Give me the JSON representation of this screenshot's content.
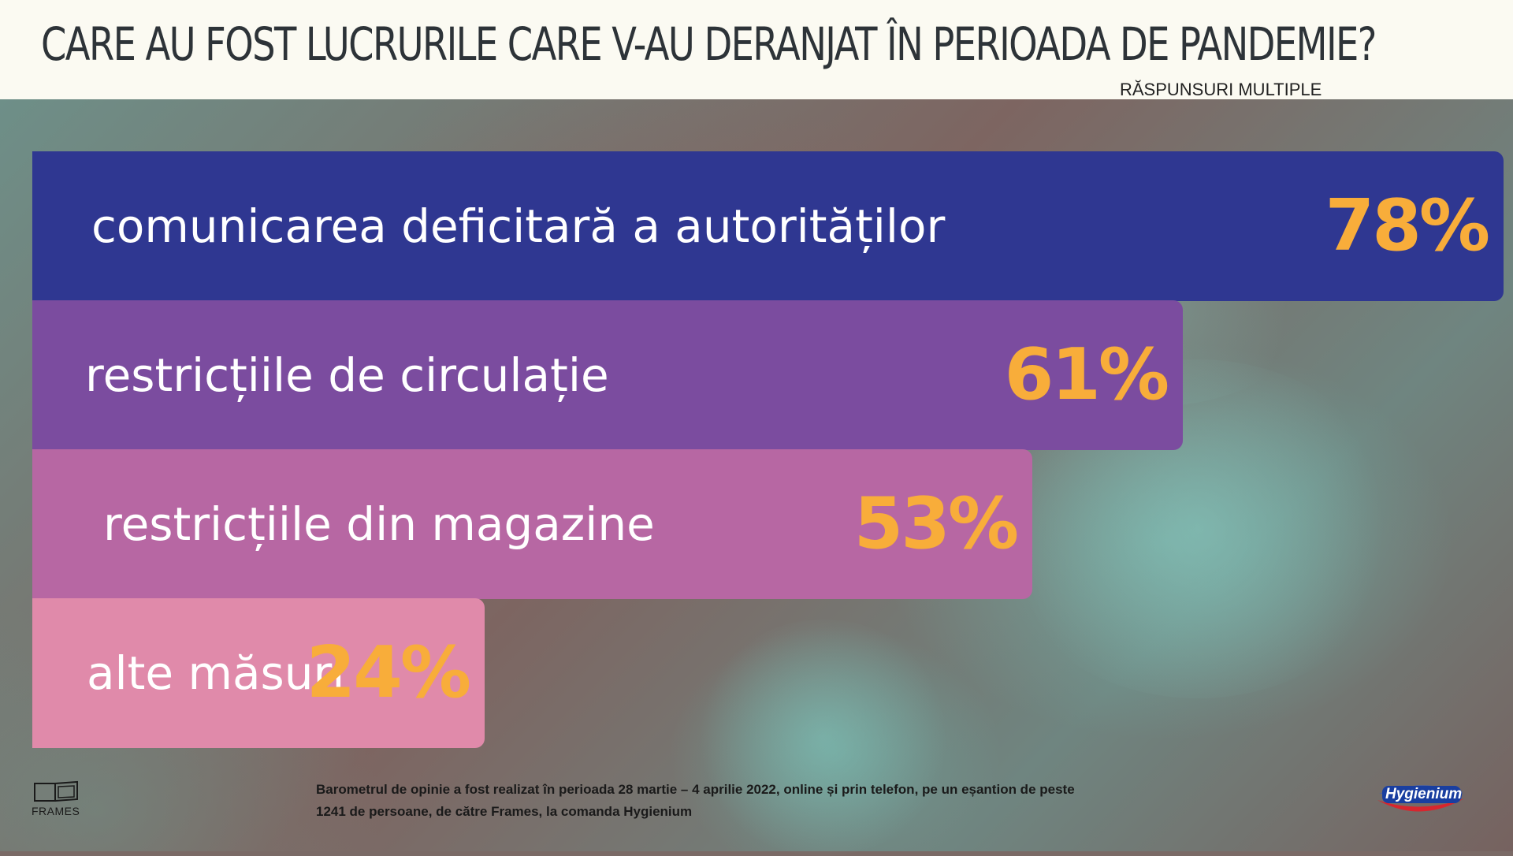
{
  "header": {
    "title": "CARE AU FOST LUCRURILE CARE V-AU DERANJAT ÎN PERIOADA DE PANDEMIE?",
    "subtitle": "RĂSPUNSURI MULTIPLE"
  },
  "chart_data": {
    "type": "bar",
    "orientation": "horizontal",
    "categories": [
      "comunicarea deficitară a autorităților",
      "restricțiile de circulație",
      "restricțiile din magazine",
      "alte măsuri"
    ],
    "values": [
      78,
      61,
      53,
      24
    ],
    "value_labels": [
      "78%",
      "61%",
      "53%",
      "24%"
    ],
    "unit": "%",
    "colors": [
      "#2f3791",
      "#7b4c9f",
      "#b767a3",
      "#e08aaa"
    ],
    "value_color": "#f8ad3a",
    "title": "CARE AU FOST LUCRURILE CARE V-AU DERANJAT ÎN PERIOADA DE PANDEMIE?",
    "subtitle": "RĂSPUNSURI MULTIPLE",
    "xlabel": "",
    "ylabel": ""
  },
  "footer": {
    "note_line1": "Barometrul de opinie a fost realizat în perioada 28 martie – 4 aprilie 2022, online și prin telefon, pe un eșantion de peste",
    "note_line2": "1241 de persoane, de către Frames, la comanda Hygienium",
    "left_logo_text": "FRAMES",
    "right_logo_text": "Hygienium"
  }
}
